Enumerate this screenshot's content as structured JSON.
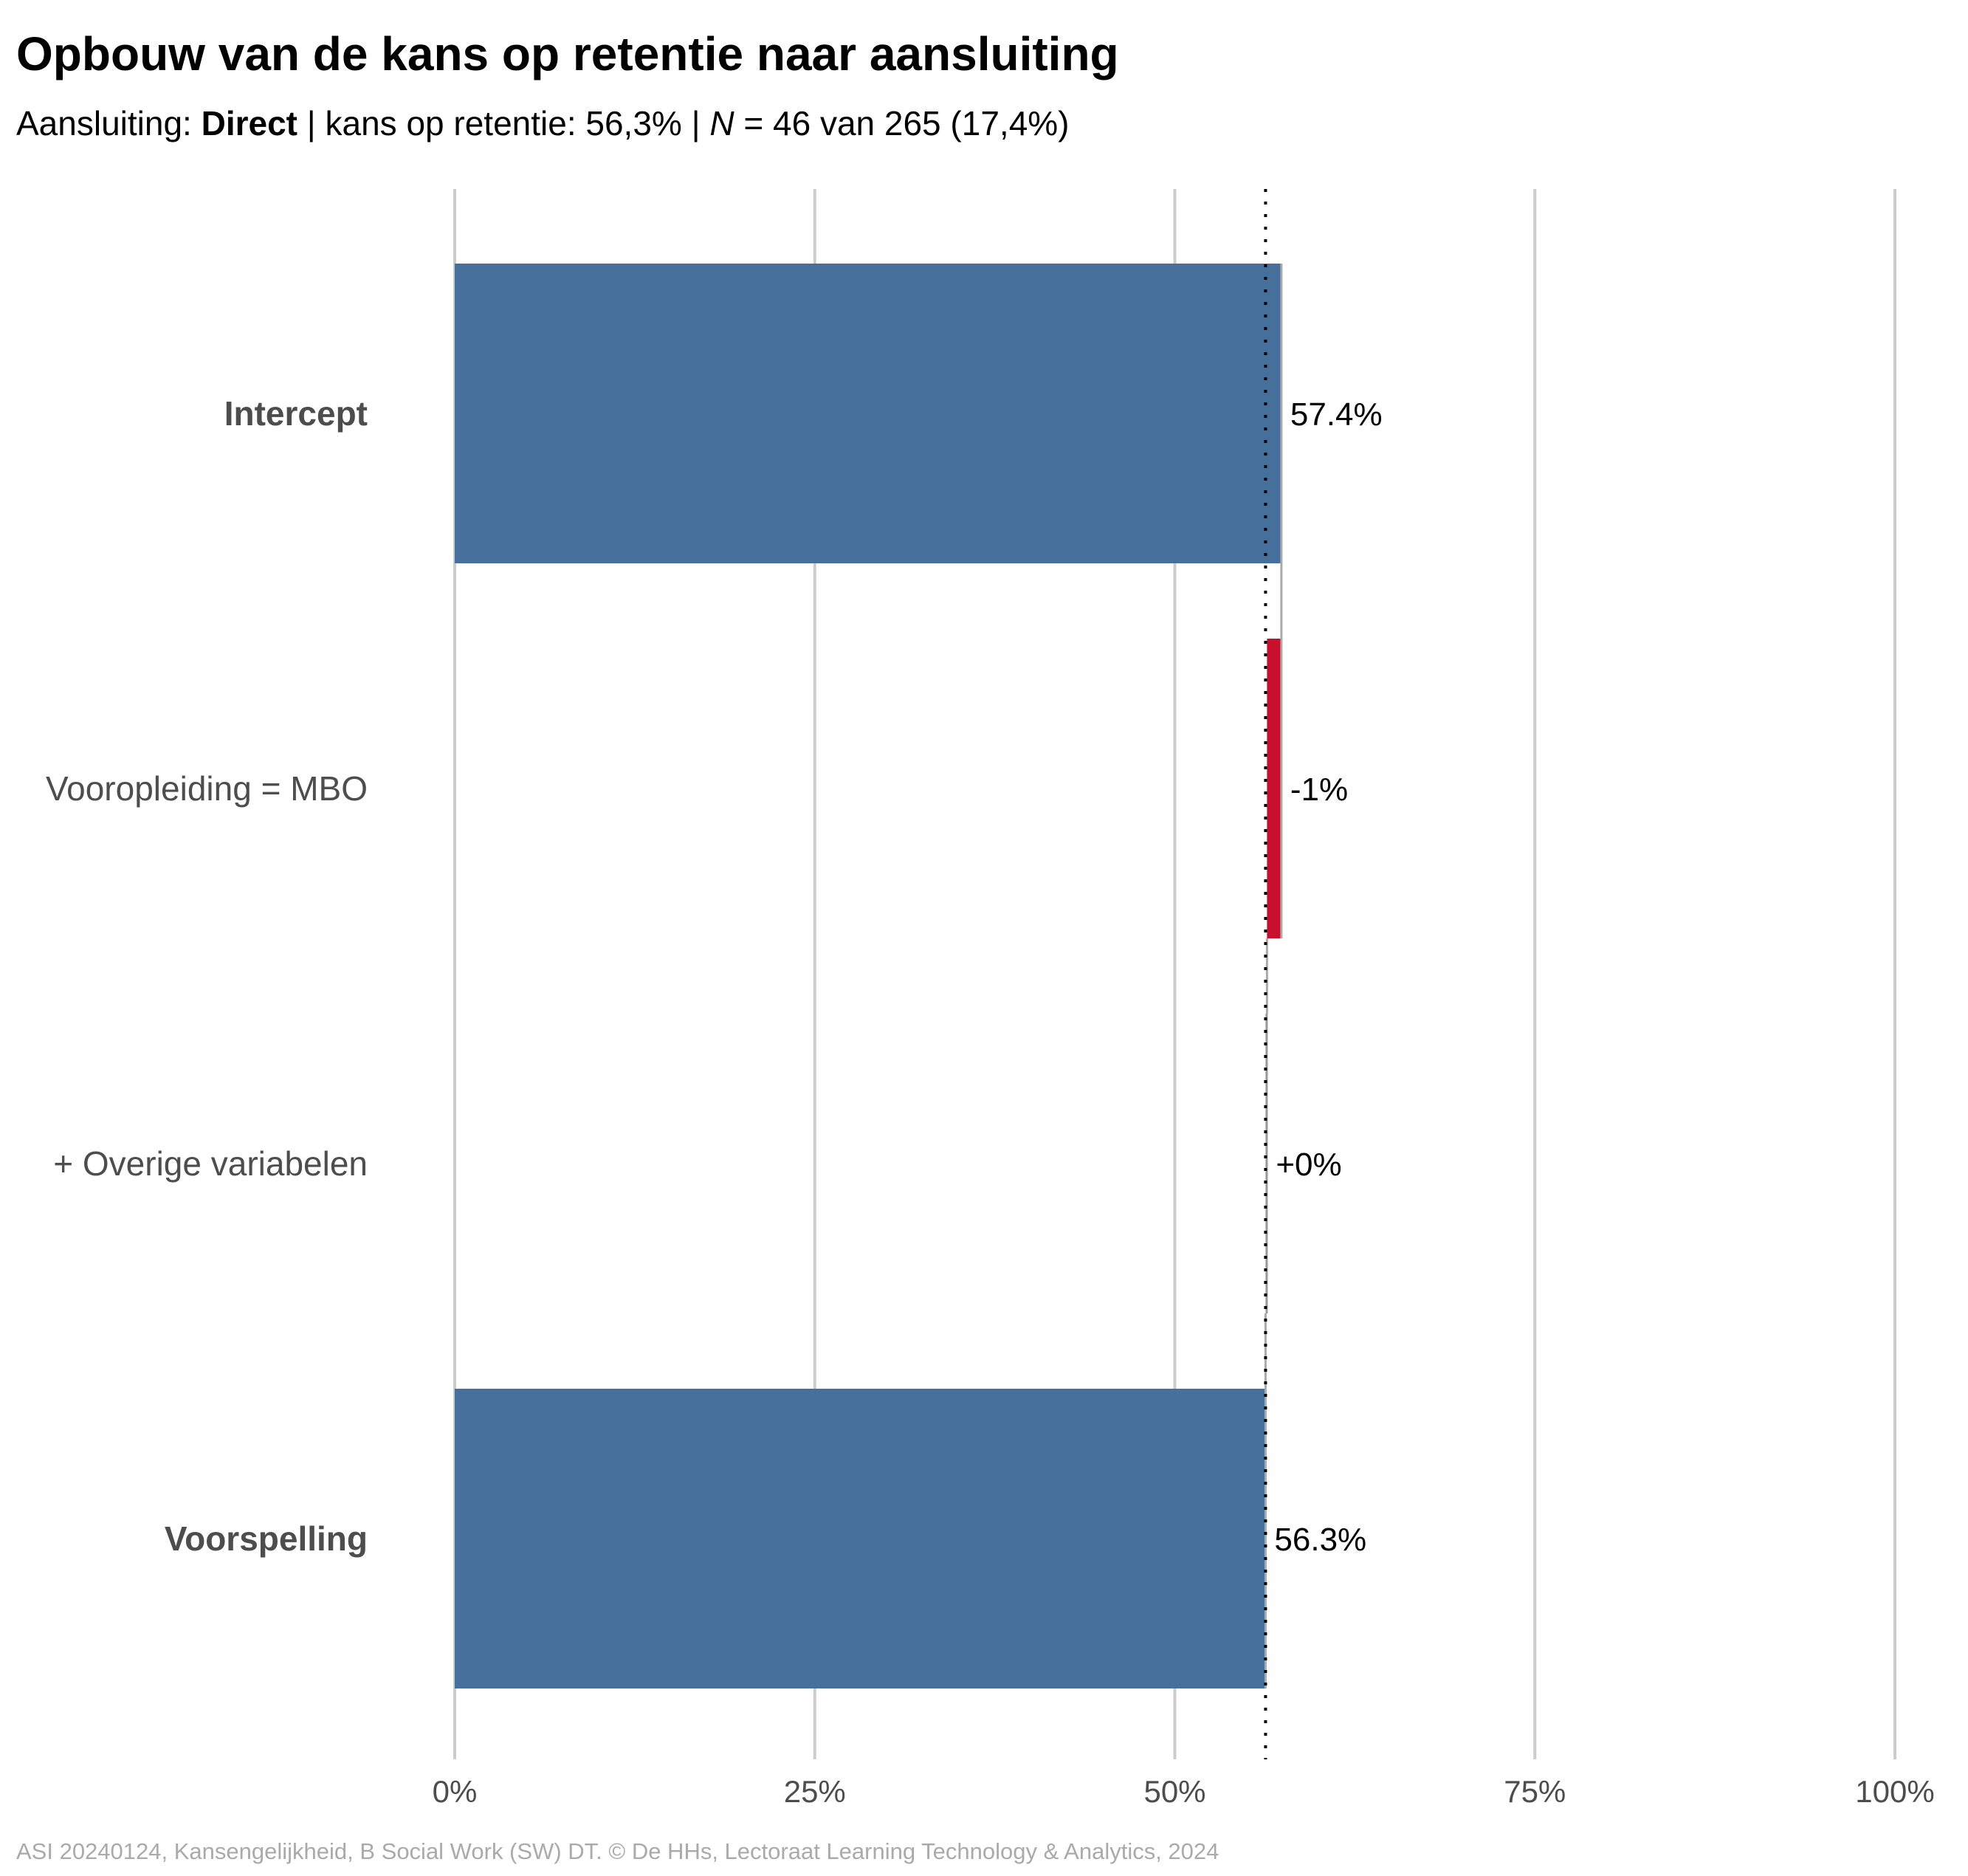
{
  "chart_data": {
    "type": "bar",
    "orientation": "horizontal",
    "subtype": "waterfall",
    "title": "Opbouw van de kans op retentie naar aansluiting",
    "subtitle": {
      "prefix": "Aansluiting: ",
      "group": "Direct",
      "middle": " | kans op retentie: 56,3% | ",
      "n_symbol": "N",
      "suffix": " = 46 van 265 (17,4%)"
    },
    "categories": [
      "Intercept",
      "Vooropleiding = MBO",
      "+ Overige variabelen",
      "Voorspelling"
    ],
    "bold_categories": [
      "Intercept",
      "Voorspelling"
    ],
    "bars": [
      {
        "category": "Intercept",
        "start": 0,
        "end": 57.4,
        "label": "57.4%",
        "color": "#476f9b"
      },
      {
        "category": "Vooropleiding = MBO",
        "start": 57.4,
        "end": 56.4,
        "label": "-1%",
        "color": "#c8102e"
      },
      {
        "category": "+ Overige variabelen",
        "start": 56.4,
        "end": 56.3,
        "label": "+0%",
        "color": "#999999"
      },
      {
        "category": "Voorspelling",
        "start": 0,
        "end": 56.3,
        "label": "56.3%",
        "color": "#476f9b"
      }
    ],
    "reference_line": 56.3,
    "xlim": [
      0,
      100
    ],
    "xticks": [
      0,
      25,
      50,
      75,
      100
    ],
    "xtick_labels": [
      "0%",
      "25%",
      "50%",
      "75%",
      "100%"
    ],
    "grid": true,
    "legend": "none",
    "caption": "ASI 20240124, Kansengelijkheid, B Social Work (SW) DT. © De HHs, Lectoraat Learning Technology & Analytics, 2024"
  }
}
